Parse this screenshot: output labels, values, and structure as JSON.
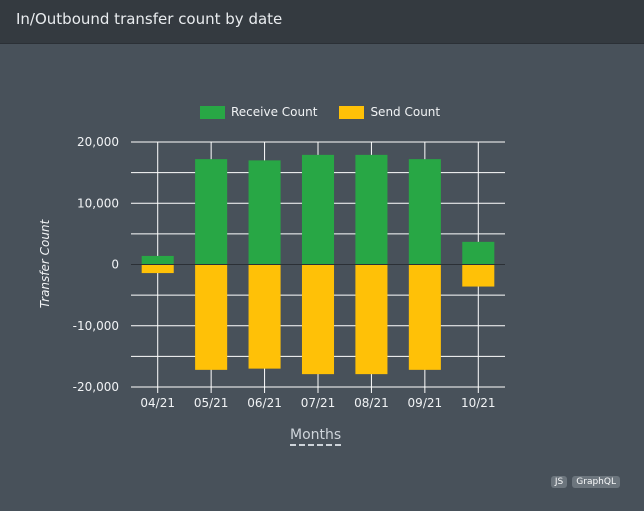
{
  "header": {
    "title": "In/Outbound transfer count by date"
  },
  "badges": {
    "js": "JS",
    "graphql": "GraphQL"
  },
  "colors": {
    "receive": "#28a745",
    "send": "#ffc107",
    "grid": "#ffffff",
    "zero": "#2b3036"
  },
  "chart_data": {
    "type": "bar",
    "stacked": true,
    "categories": [
      "04/21",
      "05/21",
      "06/21",
      "07/21",
      "08/21",
      "09/21",
      "10/21"
    ],
    "series": [
      {
        "name": "Receive Count",
        "values": [
          1400,
          17200,
          17000,
          17900,
          17900,
          17200,
          3700
        ]
      },
      {
        "name": "Send Count",
        "values": [
          -1400,
          -17200,
          -17000,
          -17900,
          -17900,
          -17200,
          -3600
        ]
      }
    ],
    "xlabel": "Months",
    "ylabel": "Transfer Count",
    "ylim": [
      -20000,
      20000
    ],
    "yticks": [
      "20,000",
      "10,000",
      "0",
      "-10,000",
      "-20,000"
    ],
    "ytick_values": [
      20000,
      10000,
      0,
      -10000,
      -20000
    ],
    "grid": true,
    "legend": "top-center"
  }
}
